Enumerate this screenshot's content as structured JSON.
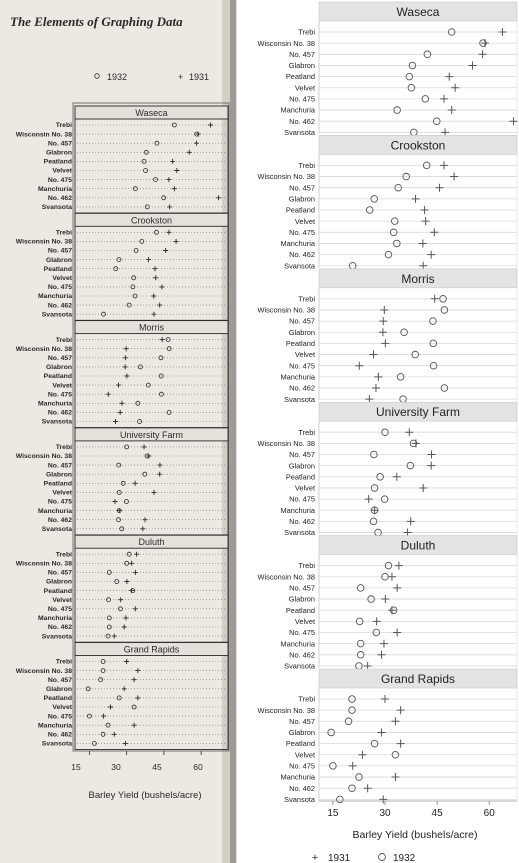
{
  "left_page": {
    "title": "The Elements of Graphing Data",
    "legend": [
      {
        "symbol": "o",
        "label": "1932"
      },
      {
        "symbol": "+",
        "label": "1931"
      }
    ],
    "x_tick_labels": [
      "15",
      "30",
      "45",
      "60"
    ],
    "xlabel": "Barley Yield (bushels/acre)"
  },
  "colors": {
    "panel_header": "#e3e3e3",
    "grid": "#d9d9d9",
    "marker": "#555555",
    "left_bg": "#ece9e3",
    "left_ink": "#2a2a2a",
    "left_panel_head": "#e4e1da"
  },
  "chart_data": {
    "type": "scatter",
    "subtype": "dot-plot-trellis",
    "xlabel": "Barley Yield (bushels/acre)",
    "xlim": [
      11,
      68
    ],
    "x_ticks": [
      15,
      30,
      45,
      60
    ],
    "grid": true,
    "legend_position": "bottom",
    "series": [
      {
        "name": "1931",
        "marker": "+"
      },
      {
        "name": "1932",
        "marker": "o"
      }
    ],
    "varieties": [
      "Trebi",
      "Wisconsin No. 38",
      "No. 457",
      "Glabron",
      "Peatland",
      "Velvet",
      "No. 475",
      "Manchuria",
      "No. 462",
      "Svansota"
    ],
    "panels": [
      {
        "site": "Waseca",
        "y1931": [
          63.8,
          58.8,
          58.1,
          55.2,
          48.5,
          50.2,
          47.0,
          49.2,
          67.0,
          47.3
        ],
        "y1932": [
          49.2,
          58.2,
          42.2,
          37.9,
          37.0,
          37.6,
          41.6,
          33.5,
          44.9,
          38.3
        ]
      },
      {
        "site": "Crookston",
        "y1931": [
          47.0,
          49.9,
          45.7,
          38.8,
          41.4,
          41.7,
          44.2,
          40.9,
          43.3,
          41.0
        ],
        "y1932": [
          42.0,
          36.1,
          33.8,
          26.9,
          25.6,
          32.8,
          32.5,
          33.4,
          31.0,
          20.7
        ]
      },
      {
        "site": "Morris",
        "y1931": [
          44.3,
          29.8,
          29.5,
          29.4,
          30.1,
          26.7,
          22.6,
          28.1,
          27.4,
          25.5
        ],
        "y1932": [
          46.7,
          47.1,
          43.8,
          35.5,
          43.9,
          38.7,
          44.0,
          34.5,
          47.1,
          35.2
        ]
      },
      {
        "site": "University Farm",
        "y1931": [
          37.0,
          38.9,
          43.4,
          43.3,
          33.4,
          41.0,
          25.3,
          27.0,
          37.4,
          36.5
        ],
        "y1932": [
          30.0,
          38.2,
          26.8,
          37.3,
          28.6,
          27.0,
          29.9,
          27.0,
          26.7,
          28.0
        ]
      },
      {
        "site": "Duluth",
        "y1931": [
          34.0,
          32.0,
          33.5,
          30.1,
          32.0,
          27.6,
          33.5,
          29.7,
          29.0,
          25.0
        ],
        "y1932": [
          31.0,
          30.0,
          23.0,
          26.0,
          32.5,
          22.7,
          27.5,
          23.0,
          23.0,
          22.5
        ]
      },
      {
        "site": "Grand Rapids",
        "y1931": [
          30.0,
          34.5,
          33.0,
          29.0,
          34.5,
          23.5,
          20.7,
          33.0,
          25.0,
          29.5
        ],
        "y1932": [
          20.5,
          20.5,
          19.5,
          14.5,
          27.0,
          33.0,
          15.0,
          22.5,
          20.5,
          17.0
        ]
      }
    ]
  }
}
